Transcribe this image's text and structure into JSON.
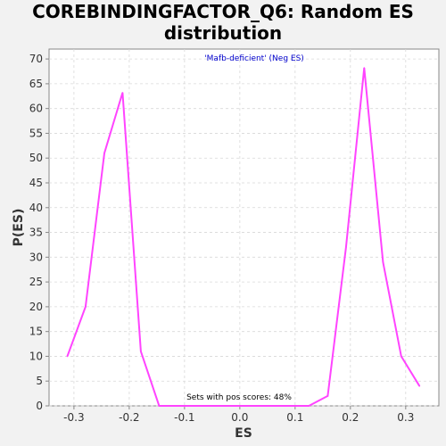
{
  "chart_data": {
    "type": "line",
    "title_line1": "COREBINDINGFACTOR_Q6: Random ES",
    "title_line2": "distribution",
    "subtitle": "'Mafb-deficient' (Neg ES)",
    "annotation": "Sets with pos scores: 48%",
    "xlabel": "ES",
    "ylabel": "P(ES)",
    "xlim": [
      -0.345,
      0.36
    ],
    "ylim": [
      0,
      72
    ],
    "x_ticks": [
      -0.3,
      -0.2,
      -0.1,
      0.0,
      0.1,
      0.2,
      0.3
    ],
    "x_tick_labels": [
      "-0.3",
      "-0.2",
      "-0.1",
      "0.0",
      "0.1",
      "0.2",
      "0.3"
    ],
    "y_ticks": [
      0,
      5,
      10,
      15,
      20,
      25,
      30,
      35,
      40,
      45,
      50,
      55,
      60,
      65,
      70
    ],
    "y_tick_labels": [
      "0",
      "5",
      "10",
      "15",
      "20",
      "25",
      "30",
      "35",
      "40",
      "45",
      "50",
      "55",
      "60",
      "65",
      "70"
    ],
    "grid": true,
    "series": [
      {
        "color": "#ff44ff",
        "x": [
          -0.312,
          -0.279,
          -0.245,
          -0.212,
          -0.179,
          -0.146,
          0.125,
          0.159,
          0.192,
          0.225,
          0.259,
          0.292,
          0.325
        ],
        "y": [
          10,
          20,
          51,
          63.2,
          11,
          0,
          0,
          2,
          32,
          68.2,
          29,
          10,
          4
        ]
      }
    ]
  },
  "colors": {
    "plot_background": "#ffffff",
    "page_background": "#f2f2f2",
    "subtitle_color": "#0000cc",
    "annotation_color": "#000000",
    "axis_color": "#888888"
  }
}
